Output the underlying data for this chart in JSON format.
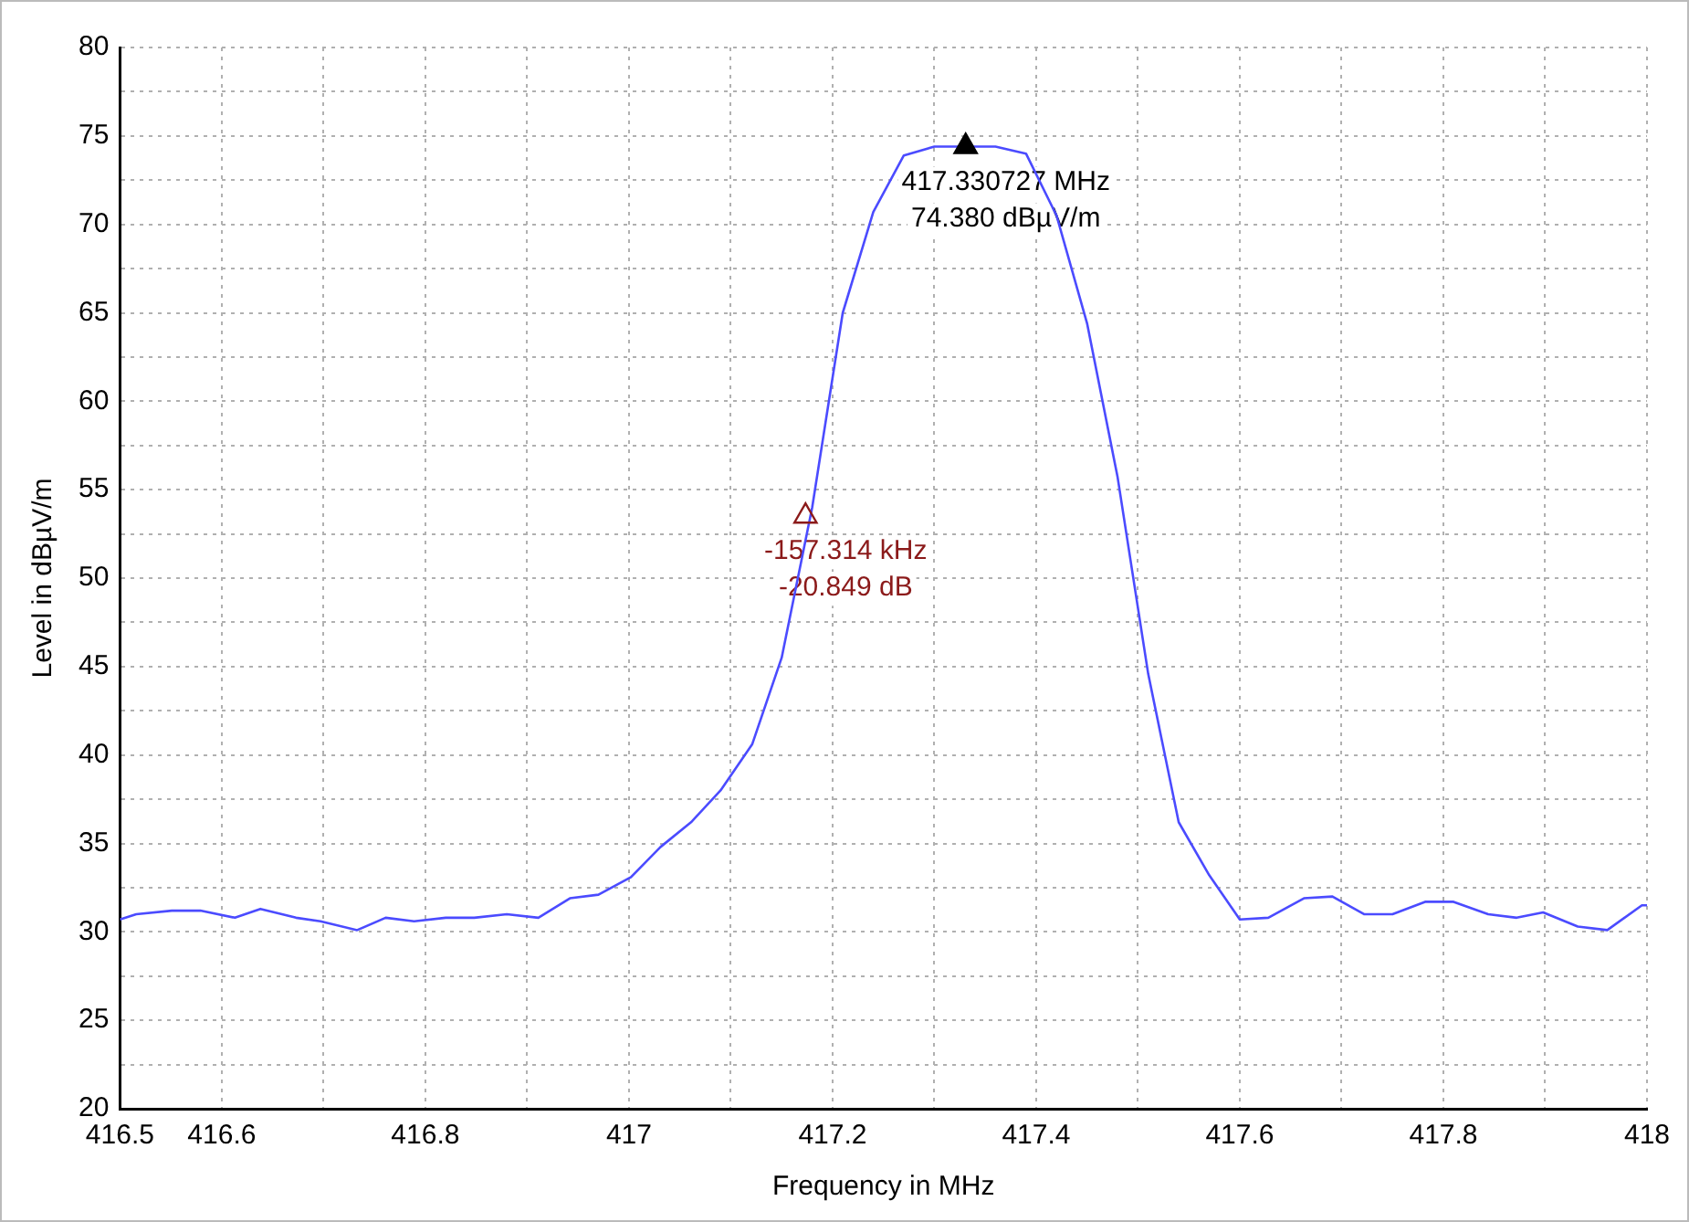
{
  "chart_data": {
    "type": "line",
    "xlabel": "Frequency in MHz",
    "ylabel": "Level in dBµV/m",
    "xlim": [
      416.5,
      418
    ],
    "ylim": [
      20,
      80
    ],
    "xticks": [
      416.5,
      416.6,
      {
        "value": 416.7,
        "label": null
      },
      416.8,
      {
        "value": 416.9,
        "label": null
      },
      417,
      {
        "value": 417.1,
        "label": null
      },
      417.2,
      {
        "value": 417.3,
        "label": null
      },
      417.4,
      {
        "value": 417.5,
        "label": null
      },
      417.6,
      {
        "value": 417.7,
        "label": null
      },
      417.8,
      {
        "value": 417.9,
        "label": null
      },
      418
    ],
    "yticks": [
      20,
      {
        "value": 22.5,
        "label": null
      },
      25,
      {
        "value": 27.5,
        "label": null
      },
      30,
      {
        "value": 32.5,
        "label": null
      },
      35,
      {
        "value": 37.5,
        "label": null
      },
      40,
      {
        "value": 42.5,
        "label": null
      },
      45,
      {
        "value": 47.5,
        "label": null
      },
      50,
      {
        "value": 52.5,
        "label": null
      },
      55,
      {
        "value": 57.5,
        "label": null
      },
      60,
      {
        "value": 62.5,
        "label": null
      },
      65,
      {
        "value": 67.5,
        "label": null
      },
      70,
      {
        "value": 72.5,
        "label": null
      },
      75,
      {
        "value": 77.5,
        "label": null
      },
      80
    ],
    "grid": true,
    "legend": false,
    "series": [
      {
        "color": "#4b4bff",
        "x": [
          416.5,
          416.516,
          416.551,
          416.579,
          416.613,
          416.638,
          416.673,
          416.697,
          416.733,
          416.761,
          416.789,
          416.82,
          416.848,
          416.88,
          416.911,
          416.942,
          416.97,
          417.002,
          417.031,
          417.061,
          417.09,
          417.121,
          417.15,
          417.18,
          417.21,
          417.24,
          417.27,
          417.3,
          417.33,
          417.36,
          417.39,
          417.42,
          417.45,
          417.48,
          417.51,
          417.54,
          417.57,
          417.6,
          417.628,
          417.663,
          417.691,
          417.722,
          417.75,
          417.782,
          417.81,
          417.844,
          417.872,
          417.898,
          417.932,
          417.961,
          417.995,
          418
        ],
        "values": [
          30.7,
          31,
          31.2,
          31.2,
          30.8,
          31.3,
          30.8,
          30.6,
          30.1,
          30.8,
          30.6,
          30.8,
          30.8,
          31,
          30.8,
          31.9,
          32.1,
          33.1,
          34.8,
          36.2,
          38,
          40.6,
          45.5,
          54,
          65,
          70.7,
          73.9,
          74.4,
          74.4,
          74.4,
          74,
          70.5,
          64.4,
          55.7,
          44.6,
          36.2,
          33.2,
          30.7,
          30.8,
          31.9,
          32,
          31,
          31,
          31.7,
          31.7,
          31,
          30.8,
          31.1,
          30.3,
          30.1,
          31.5,
          31.5
        ]
      },
      {
        "type": "scatter",
        "color": "#000000",
        "marker": "triangle",
        "x": [
          417.330727
        ],
        "values": [
          74.4
        ]
      },
      {
        "type": "scatter",
        "color": "#8b1a1a",
        "marker": "triangle",
        "x": [
          417.173413
        ],
        "values": [
          53.5
        ]
      }
    ],
    "annotations": [
      "417.330727 MHz",
      "74.380 dBµV/m",
      "-157.314 kHz",
      "-20.849 dB"
    ]
  }
}
